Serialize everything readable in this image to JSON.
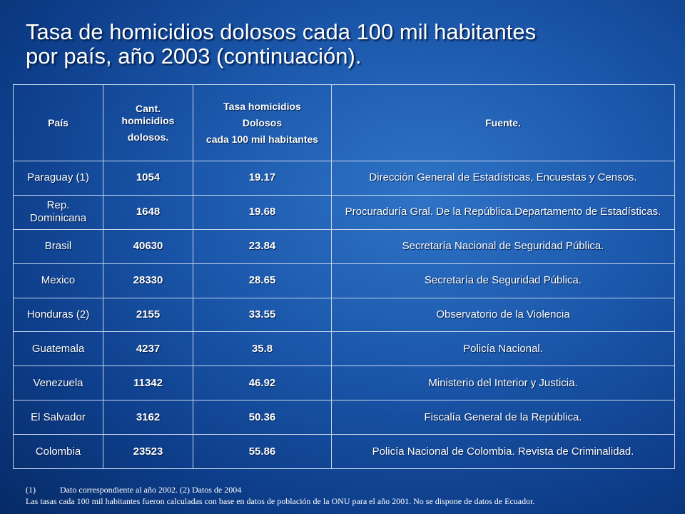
{
  "title": {
    "line1": "Tasa de homicidios dolosos cada 100 mil habitantes",
    "line2": "por país, año 2003 (continuación)."
  },
  "table": {
    "headers": {
      "country": "País",
      "count_line1": "Cant.",
      "count_line2": "homicidios",
      "count_line3": "dolosos.",
      "rate_line1": "Tasa homicidios",
      "rate_line2": "Dolosos",
      "rate_line3": "cada 100 mil habitantes",
      "source": "Fuente."
    },
    "rows": [
      {
        "country": "Paraguay (1)",
        "count": "1054",
        "rate": "19.17",
        "source": "Dirección General de Estadísticas, Encuestas y Censos."
      },
      {
        "country": "Rep. Dominicana",
        "count": "1648",
        "rate": "19.68",
        "source": "Procuraduría Gral. De la República.Departamento de Estadísticas."
      },
      {
        "country": "Brasil",
        "count": "40630",
        "rate": "23.84",
        "source": "Secretaría Nacional de Seguridad Pública."
      },
      {
        "country": "Mexico",
        "count": "28330",
        "rate": "28.65",
        "source": "Secretaría de Seguridad Pública."
      },
      {
        "country": "Honduras (2)",
        "count": "2155",
        "rate": "33.55",
        "source": "Observatorio de la Violencia"
      },
      {
        "country": "Guatemala",
        "count": "4237",
        "rate": "35.8",
        "source": "Policía Nacional."
      },
      {
        "country": "Venezuela",
        "count": "11342",
        "rate": "46.92",
        "source": "Ministerio del Interior y Justicia."
      },
      {
        "country": "El Salvador",
        "count": "3162",
        "rate": "50.36",
        "source": "Fiscalía General de la República."
      },
      {
        "country": "Colombia",
        "count": "23523",
        "rate": "55.86",
        "source": "Policía Nacional de Colombia. Revista de Criminalidad."
      }
    ]
  },
  "footnotes": {
    "mark": "(1)",
    "line1": "Dato correspondiente al año 2002. (2) Datos de 2004",
    "line2": "Las tasas cada 100 mil habitantes fueron calculadas con base en datos de población de la ONU para el año 2001. No se dispone de datos de Ecuador."
  },
  "colors": {
    "background": "#1d5aae",
    "text": "#ffffff",
    "grid": "#c9d6ec"
  }
}
